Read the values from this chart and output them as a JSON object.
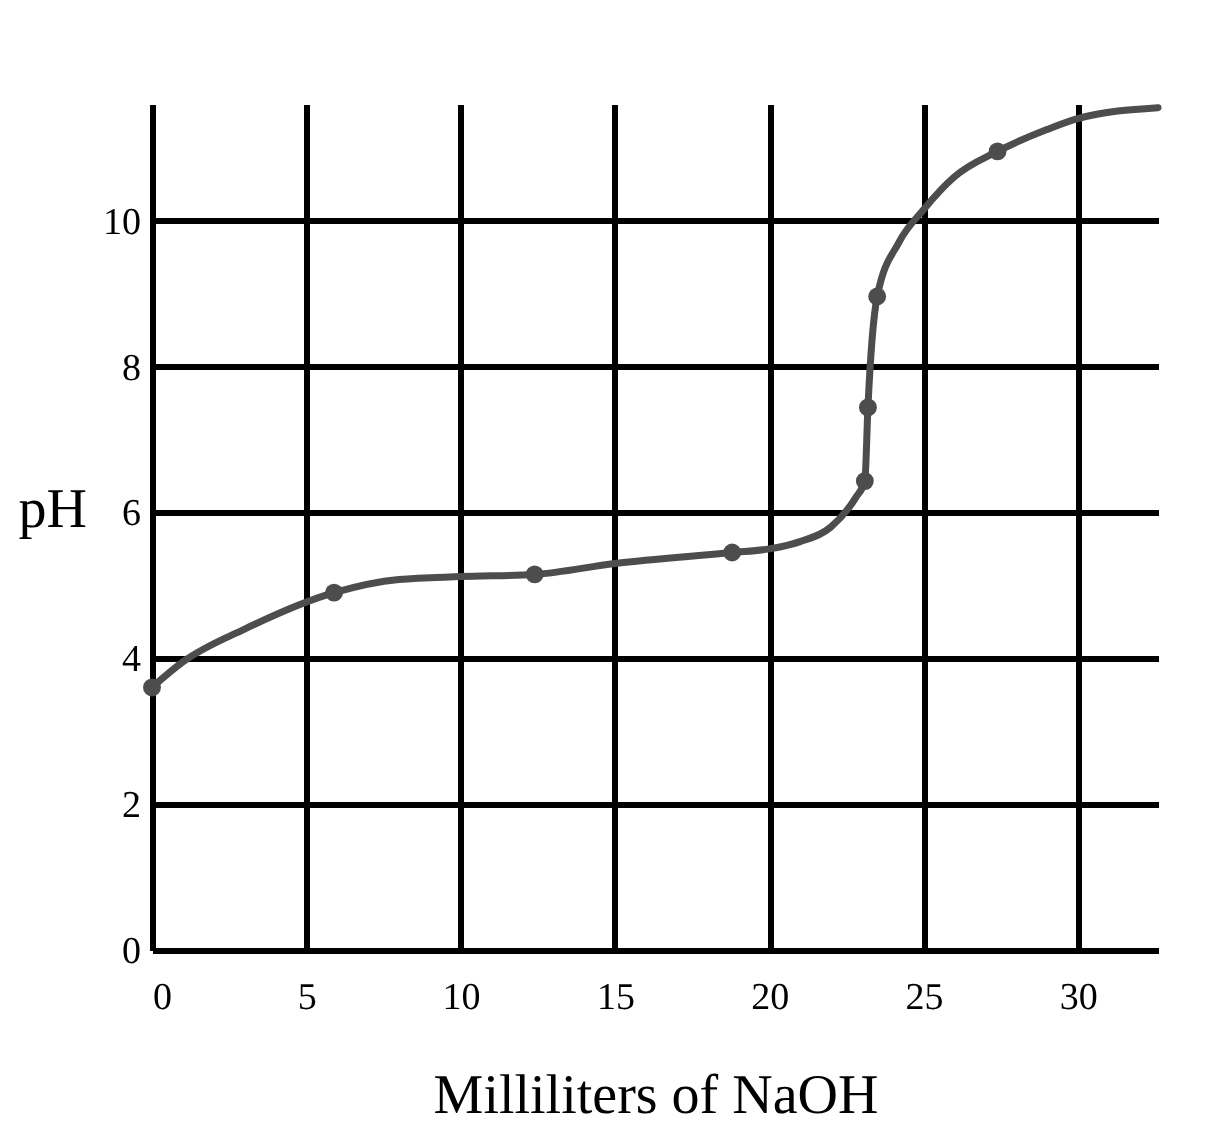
{
  "chart_data": {
    "type": "line",
    "xlabel": "Milliliters of NaOH",
    "ylabel": "pH",
    "xlim": [
      0,
      32.6
    ],
    "ylim": [
      0,
      11.6
    ],
    "xticks": [
      0,
      5,
      10,
      15,
      20,
      25,
      30
    ],
    "yticks": [
      0,
      2,
      4,
      6,
      8,
      10
    ],
    "grid": true,
    "series": [
      {
        "color": "#4d4d4d",
        "marker": "none",
        "line_style": "solid",
        "x": [
          0,
          1,
          3,
          5.9,
          8,
          10,
          12.4,
          15,
          18.8,
          20,
          21,
          22,
          22.8,
          23.1,
          23.2,
          23.5,
          24.2,
          25,
          26,
          27.4,
          29,
          30,
          32.6
        ],
        "values": [
          3.6,
          3.95,
          4.4,
          4.9,
          5.08,
          5.12,
          5.15,
          5.3,
          5.45,
          5.5,
          5.6,
          5.8,
          6.2,
          6.43,
          7.44,
          8.96,
          9.7,
          10.15,
          10.6,
          10.95,
          11.25,
          11.4,
          11.55
        ]
      },
      {
        "type": "scatter",
        "color": "#4d4d4d",
        "marker": "circle",
        "x": [
          0,
          5.9,
          12.4,
          18.8,
          23.1,
          23.2,
          23.5,
          27.4
        ],
        "values": [
          3.6,
          4.9,
          5.15,
          5.45,
          6.43,
          7.44,
          8.96,
          10.95
        ]
      }
    ]
  }
}
